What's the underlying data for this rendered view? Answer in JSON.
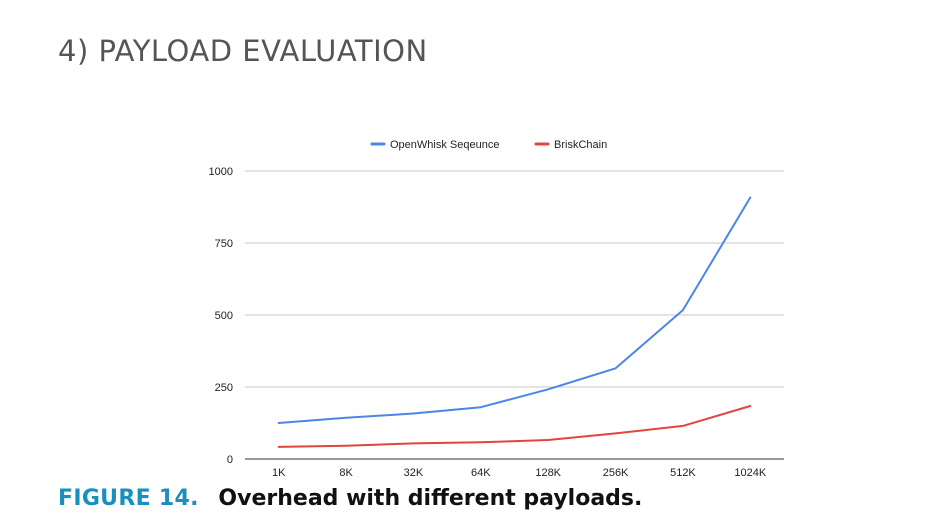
{
  "section": {
    "heading": "4)  PAYLOAD EVALUATION"
  },
  "figure": {
    "label": "FIGURE 14.",
    "text": "Overhead with different payloads."
  },
  "colors": {
    "openwhisk": "#4a86e8",
    "briskchain": "#e0463c",
    "grid": "#c8c8c8"
  },
  "chart_data": {
    "type": "line",
    "title": "",
    "xlabel": "",
    "ylabel": "",
    "categories": [
      "1K",
      "8K",
      "32K",
      "64K",
      "128K",
      "256K",
      "512K",
      "1024K"
    ],
    "ylim": [
      0,
      1000
    ],
    "yticks": [
      "0",
      "250",
      "500",
      "750",
      "1000"
    ],
    "grid": true,
    "legend_position": "top-center",
    "series": [
      {
        "name": "OpenWhisk Seqeunce",
        "color": "#4a86e8",
        "values": [
          125,
          143,
          158,
          180,
          242,
          315,
          517,
          908
        ]
      },
      {
        "name": "BriskChain",
        "color": "#e0463c",
        "values": [
          42,
          46,
          54,
          58,
          66,
          89,
          115,
          184
        ]
      }
    ]
  }
}
